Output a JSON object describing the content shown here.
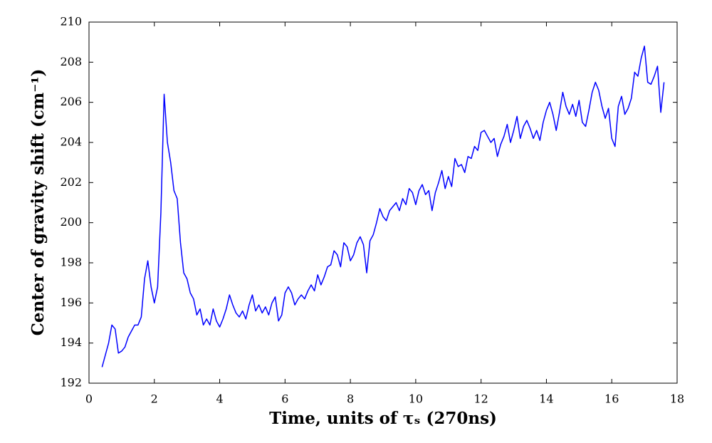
{
  "chart_data": {
    "type": "line",
    "xlabel": "Time, units of τₛ (270ns)",
    "ylabel": "Center of gravity shift (cm⁻¹)",
    "xlim": [
      0,
      18
    ],
    "xticks": [
      0,
      2,
      4,
      6,
      8,
      10,
      12,
      14,
      16,
      18
    ],
    "ylim": [
      192,
      210
    ],
    "yticks": [
      192,
      194,
      196,
      198,
      200,
      202,
      204,
      206,
      208,
      210
    ],
    "grid": false,
    "color": "#0000ff",
    "x": [
      0.4,
      0.5,
      0.6,
      0.7,
      0.8,
      0.9,
      1.0,
      1.1,
      1.2,
      1.3,
      1.4,
      1.5,
      1.6,
      1.7,
      1.8,
      1.9,
      2.0,
      2.1,
      2.2,
      2.3,
      2.4,
      2.5,
      2.6,
      2.7,
      2.8,
      2.9,
      3.0,
      3.1,
      3.2,
      3.3,
      3.4,
      3.5,
      3.6,
      3.7,
      3.8,
      3.9,
      4.0,
      4.1,
      4.2,
      4.3,
      4.4,
      4.5,
      4.6,
      4.7,
      4.8,
      4.9,
      5.0,
      5.1,
      5.2,
      5.3,
      5.4,
      5.5,
      5.6,
      5.7,
      5.8,
      5.9,
      6.0,
      6.1,
      6.2,
      6.3,
      6.4,
      6.5,
      6.6,
      6.7,
      6.8,
      6.9,
      7.0,
      7.1,
      7.2,
      7.3,
      7.4,
      7.5,
      7.6,
      7.7,
      7.8,
      7.9,
      8.0,
      8.1,
      8.2,
      8.3,
      8.4,
      8.5,
      8.6,
      8.7,
      8.8,
      8.9,
      9.0,
      9.1,
      9.2,
      9.3,
      9.4,
      9.5,
      9.6,
      9.7,
      9.8,
      9.9,
      10.0,
      10.1,
      10.2,
      10.3,
      10.4,
      10.5,
      10.6,
      10.7,
      10.8,
      10.9,
      11.0,
      11.1,
      11.2,
      11.3,
      11.4,
      11.5,
      11.6,
      11.7,
      11.8,
      11.9,
      12.0,
      12.1,
      12.2,
      12.3,
      12.4,
      12.5,
      12.6,
      12.7,
      12.8,
      12.9,
      13.0,
      13.1,
      13.2,
      13.3,
      13.4,
      13.5,
      13.6,
      13.7,
      13.8,
      13.9,
      14.0,
      14.1,
      14.2,
      14.3,
      14.4,
      14.5,
      14.6,
      14.7,
      14.8,
      14.9,
      15.0,
      15.1,
      15.2,
      15.3,
      15.4,
      15.5,
      15.6,
      15.7,
      15.8,
      15.9,
      16.0,
      16.1,
      16.2,
      16.3,
      16.4,
      16.5,
      16.6,
      16.7,
      16.8,
      16.9,
      17.0,
      17.1,
      17.2,
      17.3,
      17.4,
      17.5,
      17.6
    ],
    "values": [
      192.8,
      193.4,
      194.0,
      194.9,
      194.7,
      193.5,
      193.6,
      193.8,
      194.3,
      194.6,
      194.9,
      194.9,
      195.3,
      197.2,
      198.1,
      196.8,
      196.0,
      196.8,
      200.5,
      206.4,
      204.0,
      203.0,
      201.6,
      201.2,
      199.0,
      197.5,
      197.2,
      196.5,
      196.2,
      195.4,
      195.7,
      194.9,
      195.2,
      194.9,
      195.7,
      195.1,
      194.8,
      195.2,
      195.7,
      196.4,
      195.9,
      195.5,
      195.3,
      195.6,
      195.2,
      195.9,
      196.4,
      195.6,
      195.9,
      195.5,
      195.8,
      195.4,
      196.0,
      196.3,
      195.1,
      195.4,
      196.5,
      196.8,
      196.5,
      195.9,
      196.2,
      196.4,
      196.2,
      196.6,
      196.9,
      196.6,
      197.4,
      196.9,
      197.3,
      197.8,
      197.9,
      198.6,
      198.4,
      197.8,
      199.0,
      198.8,
      198.1,
      198.4,
      199.0,
      199.3,
      198.9,
      197.5,
      199.1,
      199.4,
      200.0,
      200.7,
      200.3,
      200.1,
      200.6,
      200.8,
      201.0,
      200.6,
      201.2,
      200.9,
      201.7,
      201.5,
      200.9,
      201.6,
      201.9,
      201.4,
      201.6,
      200.6,
      201.5,
      202.0,
      202.6,
      201.7,
      202.3,
      201.8,
      203.2,
      202.8,
      202.9,
      202.5,
      203.3,
      203.2,
      203.8,
      203.6,
      204.5,
      204.6,
      204.3,
      204.0,
      204.2,
      203.3,
      203.9,
      204.3,
      204.9,
      204.0,
      204.6,
      205.3,
      204.2,
      204.8,
      205.1,
      204.7,
      204.2,
      204.6,
      204.1,
      205.0,
      205.6,
      206.0,
      205.4,
      204.6,
      205.5,
      206.5,
      205.8,
      205.4,
      205.9,
      205.3,
      206.1,
      205.0,
      204.8,
      205.6,
      206.5,
      207.0,
      206.6,
      205.8,
      205.2,
      205.7,
      204.2,
      203.8,
      205.8,
      206.3,
      205.4,
      205.7,
      206.2,
      207.5,
      207.3,
      208.2,
      208.8,
      207.0,
      206.9,
      207.3,
      207.8,
      205.5,
      207.0
    ]
  }
}
